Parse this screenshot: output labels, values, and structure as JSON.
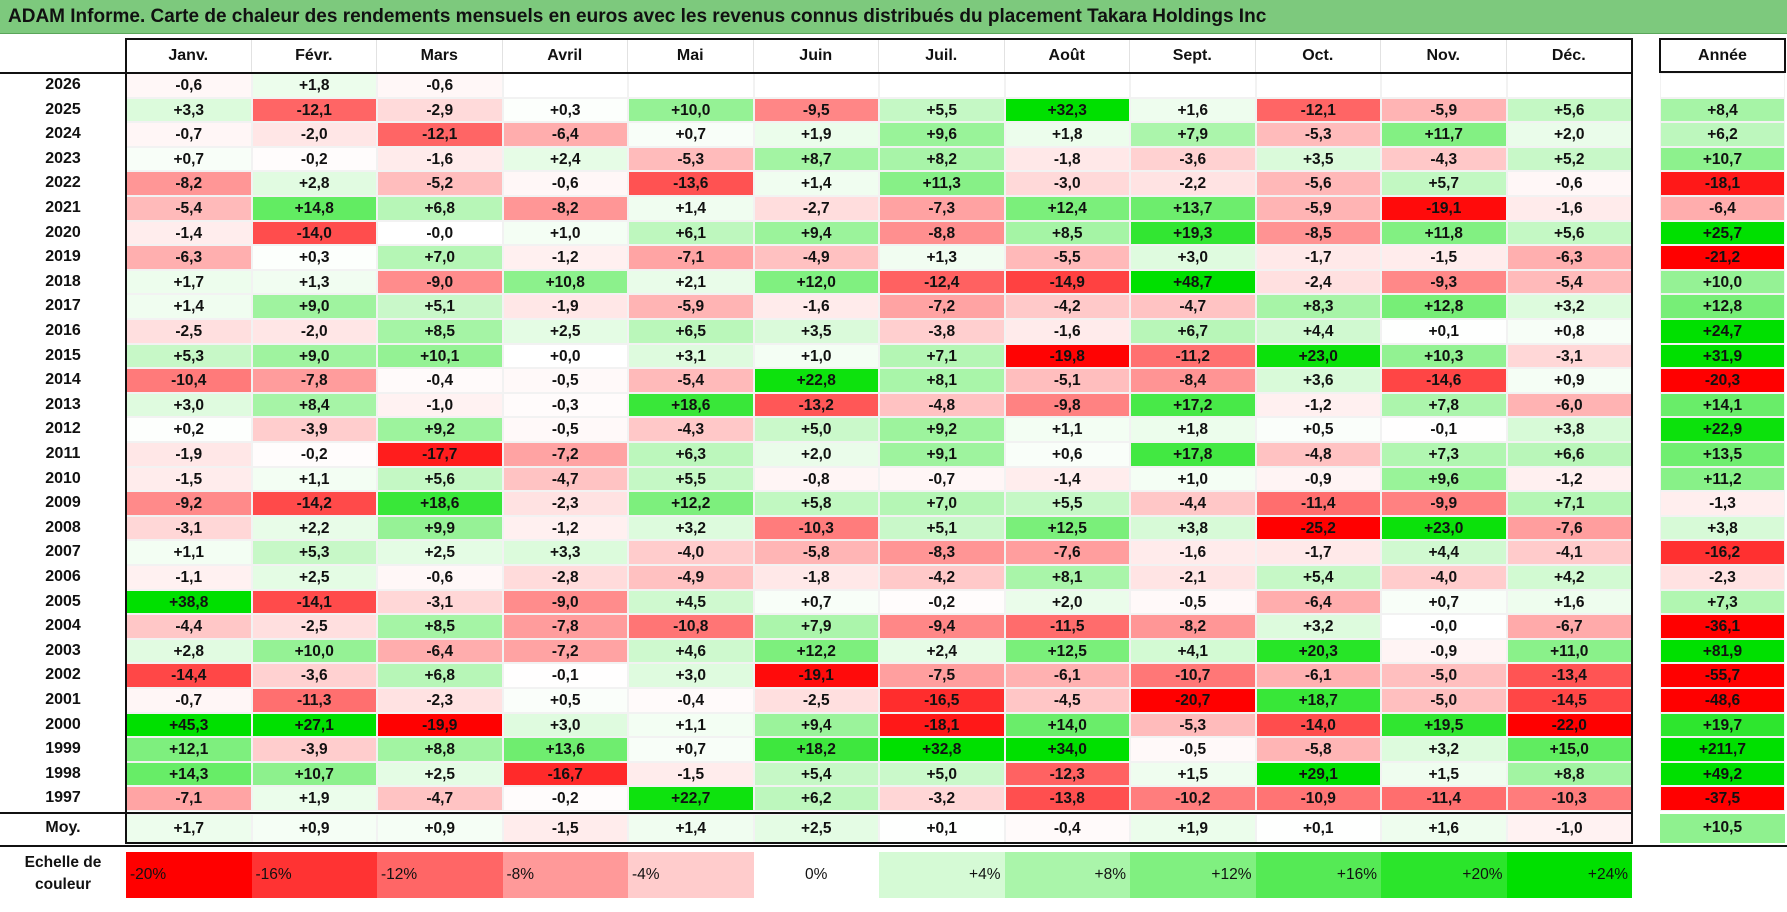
{
  "title": "ADAM Informe. Carte de chaleur des rendements mensuels en euros avec les revenus connus distribués du placement Takara Holdings Inc",
  "colors": {
    "title_bg": "#7dc97d",
    "positive_max": "#00e000",
    "negative_max": "#ff0000",
    "neutral": "#ffffff"
  },
  "chart_data": {
    "type": "heatmap",
    "title": "ADAM Informe. Carte de chaleur des rendements mensuels en euros avec les revenus connus distribués du placement Takara Holdings Inc",
    "months": [
      "Janv.",
      "Févr.",
      "Mars",
      "Avril",
      "Mai",
      "Juin",
      "Juil.",
      "Août",
      "Sept.",
      "Oct.",
      "Nov.",
      "Déc."
    ],
    "annual_header": "Année",
    "rows": [
      {
        "year": "2026",
        "values": [
          "-0,6",
          "+1,8",
          "-0,6",
          "",
          "",
          "",
          "",
          "",
          "",
          "",
          "",
          ""
        ],
        "annual": ""
      },
      {
        "year": "2025",
        "values": [
          "+3,3",
          "-12,1",
          "-2,9",
          "+0,3",
          "+10,0",
          "-9,5",
          "+5,5",
          "+32,3",
          "+1,6",
          "-12,1",
          "-5,9",
          "+5,6"
        ],
        "annual": "+8,4"
      },
      {
        "year": "2024",
        "values": [
          "-0,7",
          "-2,0",
          "-12,1",
          "-6,4",
          "+0,7",
          "+1,9",
          "+9,6",
          "+1,8",
          "+7,9",
          "-5,3",
          "+11,7",
          "+2,0"
        ],
        "annual": "+6,2"
      },
      {
        "year": "2023",
        "values": [
          "+0,7",
          "-0,2",
          "-1,6",
          "+2,4",
          "-5,3",
          "+8,7",
          "+8,2",
          "-1,8",
          "-3,6",
          "+3,5",
          "-4,3",
          "+5,2"
        ],
        "annual": "+10,7"
      },
      {
        "year": "2022",
        "values": [
          "-8,2",
          "+2,8",
          "-5,2",
          "-0,6",
          "-13,6",
          "+1,4",
          "+11,3",
          "-3,0",
          "-2,2",
          "-5,6",
          "+5,7",
          "-0,6"
        ],
        "annual": "-18,1"
      },
      {
        "year": "2021",
        "values": [
          "-5,4",
          "+14,8",
          "+6,8",
          "-8,2",
          "+1,4",
          "-2,7",
          "-7,3",
          "+12,4",
          "+13,7",
          "-5,9",
          "-19,1",
          "-1,6"
        ],
        "annual": "-6,4"
      },
      {
        "year": "2020",
        "values": [
          "-1,4",
          "-14,0",
          "-0,0",
          "+1,0",
          "+6,1",
          "+9,4",
          "-8,8",
          "+8,5",
          "+19,3",
          "-8,5",
          "+11,8",
          "+5,6"
        ],
        "annual": "+25,7"
      },
      {
        "year": "2019",
        "values": [
          "-6,3",
          "+0,3",
          "+7,0",
          "-1,2",
          "-7,1",
          "-4,9",
          "+1,3",
          "-5,5",
          "+3,0",
          "-1,7",
          "-1,5",
          "-6,3"
        ],
        "annual": "-21,2"
      },
      {
        "year": "2018",
        "values": [
          "+1,7",
          "+1,3",
          "-9,0",
          "+10,8",
          "+2,1",
          "+12,0",
          "-12,4",
          "-14,9",
          "+48,7",
          "-2,4",
          "-9,3",
          "-5,4"
        ],
        "annual": "+10,0"
      },
      {
        "year": "2017",
        "values": [
          "+1,4",
          "+9,0",
          "+5,1",
          "-1,9",
          "-5,9",
          "-1,6",
          "-7,2",
          "-4,2",
          "-4,7",
          "+8,3",
          "+12,8",
          "+3,2"
        ],
        "annual": "+12,8"
      },
      {
        "year": "2016",
        "values": [
          "-2,5",
          "-2,0",
          "+8,5",
          "+2,5",
          "+6,5",
          "+3,5",
          "-3,8",
          "-1,6",
          "+6,7",
          "+4,4",
          "+0,1",
          "+0,8"
        ],
        "annual": "+24,7"
      },
      {
        "year": "2015",
        "values": [
          "+5,3",
          "+9,0",
          "+10,1",
          "+0,0",
          "+3,1",
          "+1,0",
          "+7,1",
          "-19,8",
          "-11,2",
          "+23,0",
          "+10,3",
          "-3,1"
        ],
        "annual": "+31,9"
      },
      {
        "year": "2014",
        "values": [
          "-10,4",
          "-7,8",
          "-0,4",
          "-0,5",
          "-5,4",
          "+22,8",
          "+8,1",
          "-5,1",
          "-8,4",
          "+3,6",
          "-14,6",
          "+0,9"
        ],
        "annual": "-20,3"
      },
      {
        "year": "2013",
        "values": [
          "+3,0",
          "+8,4",
          "-1,0",
          "-0,3",
          "+18,6",
          "-13,2",
          "-4,8",
          "-9,8",
          "+17,2",
          "-1,2",
          "+7,8",
          "-6,0"
        ],
        "annual": "+14,1"
      },
      {
        "year": "2012",
        "values": [
          "+0,2",
          "-3,9",
          "+9,2",
          "-0,5",
          "-4,3",
          "+5,0",
          "+9,2",
          "+1,1",
          "+1,8",
          "+0,5",
          "-0,1",
          "+3,8"
        ],
        "annual": "+22,9"
      },
      {
        "year": "2011",
        "values": [
          "-1,9",
          "-0,2",
          "-17,7",
          "-7,2",
          "+6,3",
          "+2,0",
          "+9,1",
          "+0,6",
          "+17,8",
          "-4,8",
          "+7,3",
          "+6,6"
        ],
        "annual": "+13,5"
      },
      {
        "year": "2010",
        "values": [
          "-1,5",
          "+1,1",
          "+5,6",
          "-4,7",
          "+5,5",
          "-0,8",
          "-0,7",
          "-1,4",
          "+1,0",
          "-0,9",
          "+9,6",
          "-1,2"
        ],
        "annual": "+11,2"
      },
      {
        "year": "2009",
        "values": [
          "-9,2",
          "-14,2",
          "+18,6",
          "-2,3",
          "+12,2",
          "+5,8",
          "+7,0",
          "+5,5",
          "-4,4",
          "-11,4",
          "-9,9",
          "+7,1"
        ],
        "annual": "-1,3"
      },
      {
        "year": "2008",
        "values": [
          "-3,1",
          "+2,2",
          "+9,9",
          "-1,2",
          "+3,2",
          "-10,3",
          "+5,1",
          "+12,5",
          "+3,8",
          "-25,2",
          "+23,0",
          "-7,6"
        ],
        "annual": "+3,8"
      },
      {
        "year": "2007",
        "values": [
          "+1,1",
          "+5,3",
          "+2,5",
          "+3,3",
          "-4,0",
          "-5,8",
          "-8,3",
          "-7,6",
          "-1,6",
          "-1,7",
          "+4,4",
          "-4,1"
        ],
        "annual": "-16,2"
      },
      {
        "year": "2006",
        "values": [
          "-1,1",
          "+2,5",
          "-0,6",
          "-2,8",
          "-4,9",
          "-1,8",
          "-4,2",
          "+8,1",
          "-2,1",
          "+5,4",
          "-4,0",
          "+4,2"
        ],
        "annual": "-2,3"
      },
      {
        "year": "2005",
        "values": [
          "+38,8",
          "-14,1",
          "-3,1",
          "-9,0",
          "+4,5",
          "+0,7",
          "-0,2",
          "+2,0",
          "-0,5",
          "-6,4",
          "+0,7",
          "+1,6"
        ],
        "annual": "+7,3"
      },
      {
        "year": "2004",
        "values": [
          "-4,4",
          "-2,5",
          "+8,5",
          "-7,8",
          "-10,8",
          "+7,9",
          "-9,4",
          "-11,5",
          "-8,2",
          "+3,2",
          "-0,0",
          "-6,7"
        ],
        "annual": "-36,1"
      },
      {
        "year": "2003",
        "values": [
          "+2,8",
          "+10,0",
          "-6,4",
          "-7,2",
          "+4,6",
          "+12,2",
          "+2,4",
          "+12,5",
          "+4,1",
          "+20,3",
          "-0,9",
          "+11,0"
        ],
        "annual": "+81,9"
      },
      {
        "year": "2002",
        "values": [
          "-14,4",
          "-3,6",
          "+6,8",
          "-0,1",
          "+3,0",
          "-19,1",
          "-7,5",
          "-6,1",
          "-10,7",
          "-6,1",
          "-5,0",
          "-13,4"
        ],
        "annual": "-55,7"
      },
      {
        "year": "2001",
        "values": [
          "-0,7",
          "-11,3",
          "-2,3",
          "+0,5",
          "-0,4",
          "-2,5",
          "-16,5",
          "-4,5",
          "-20,7",
          "+18,7",
          "-5,0",
          "-14,5"
        ],
        "annual": "-48,6"
      },
      {
        "year": "2000",
        "values": [
          "+45,3",
          "+27,1",
          "-19,9",
          "+3,0",
          "+1,1",
          "+9,4",
          "-18,1",
          "+14,0",
          "-5,3",
          "-14,0",
          "+19,5",
          "-22,0"
        ],
        "annual": "+19,7"
      },
      {
        "year": "1999",
        "values": [
          "+12,1",
          "-3,9",
          "+8,8",
          "+13,6",
          "+0,7",
          "+18,2",
          "+32,8",
          "+34,0",
          "-0,5",
          "-5,8",
          "+3,2",
          "+15,0"
        ],
        "annual": "+211,7"
      },
      {
        "year": "1998",
        "values": [
          "+14,3",
          "+10,7",
          "+2,5",
          "-16,7",
          "-1,5",
          "+5,4",
          "+5,0",
          "-12,3",
          "+1,5",
          "+29,1",
          "+1,5",
          "+8,8"
        ],
        "annual": "+49,2"
      },
      {
        "year": "1997",
        "values": [
          "-7,1",
          "+1,9",
          "-4,7",
          "-0,2",
          "+22,7",
          "+6,2",
          "-3,2",
          "-13,8",
          "-10,2",
          "-10,9",
          "-11,4",
          "-10,3"
        ],
        "annual": "-37,5"
      }
    ],
    "average": {
      "label": "Moy.",
      "values": [
        "+1,7",
        "+0,9",
        "+0,9",
        "-1,5",
        "+1,4",
        "+2,5",
        "+0,1",
        "-0,4",
        "+1,9",
        "+0,1",
        "+1,6",
        "-1,0"
      ],
      "annual": "+10,5"
    },
    "scale": {
      "label": "Echelle de couleur",
      "steps": [
        "-20%",
        "-16%",
        "-12%",
        "-8%",
        "-4%",
        "0%",
        "+4%",
        "+8%",
        "+12%",
        "+16%",
        "+20%",
        "+24%"
      ]
    }
  }
}
